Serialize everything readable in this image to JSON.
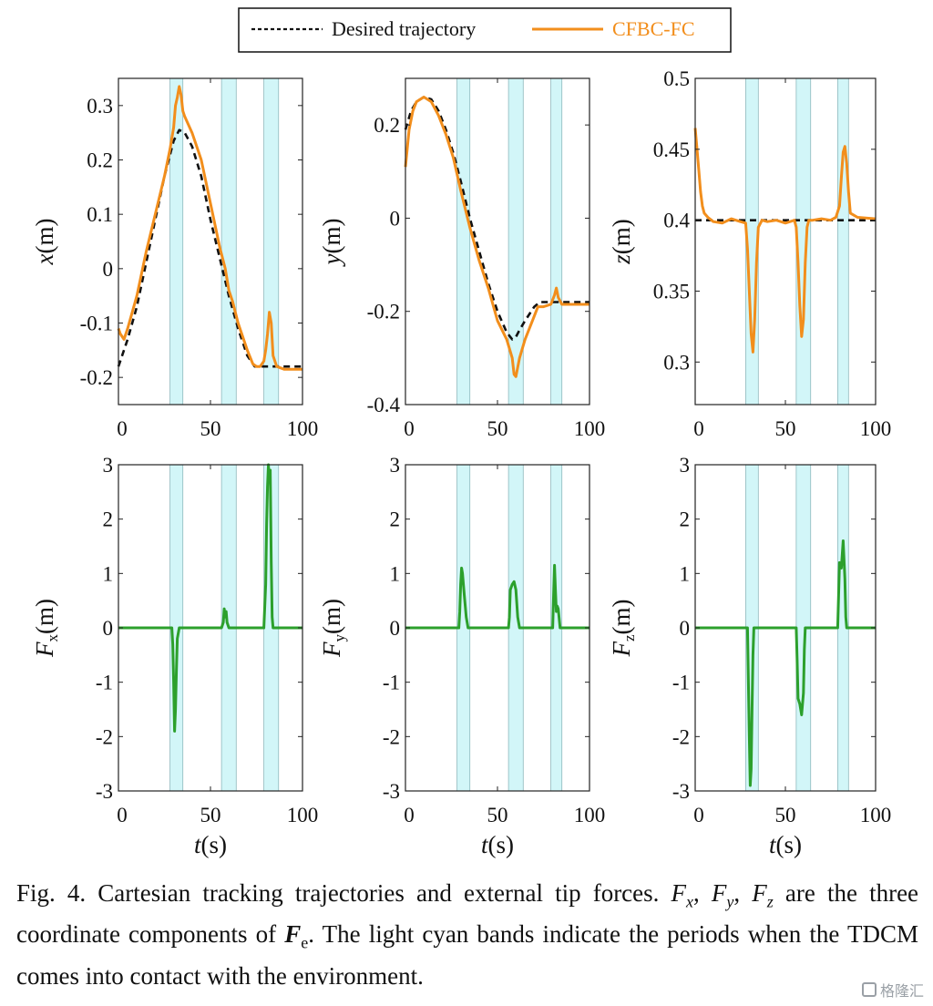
{
  "legend": {
    "desired_label": "Desired trajectory",
    "actual_label": "CFBC-FC",
    "desired_color": "#111111",
    "actual_color": "#f28e1c"
  },
  "force_color": "#2ca02c",
  "band_color": "#d2f6f8",
  "caption": {
    "fig_label": "Fig. 4.",
    "text_1": " Cartesian tracking trajectories and external tip forces. ",
    "sym_fx": "F",
    "sym_fx_sub": "x",
    "sym_fy": "F",
    "sym_fy_sub": "y",
    "sym_fz": "F",
    "sym_fz_sub": "z",
    "text_2": " are the three coordinate components of ",
    "sym_fe": "F",
    "sym_fe_sub": "e",
    "text_3": ". The light cyan bands indicate the periods when the TDCM comes into contact with the environment."
  },
  "watermark": "格隆汇",
  "chart_data": [
    {
      "type": "line",
      "ylabel": "x(m)",
      "xlabel": "",
      "xlim": [
        0,
        100
      ],
      "ylim": [
        -0.25,
        0.35
      ],
      "xticks": [
        0,
        50,
        100
      ],
      "yticks": [
        -0.2,
        -0.1,
        0,
        0.1,
        0.2,
        0.3
      ],
      "yticklabels": [
        "-0.2",
        "-0.1",
        "0",
        "0.1",
        "0.2",
        "0.3"
      ],
      "bands": [
        [
          28,
          35
        ],
        [
          56,
          64
        ],
        [
          79,
          87
        ]
      ],
      "series": [
        {
          "name": "Desired trajectory",
          "style": "dashed",
          "x": [
            0,
            5,
            10,
            15,
            20,
            25,
            30,
            33,
            36,
            40,
            45,
            50,
            55,
            60,
            65,
            70,
            74,
            76,
            80,
            90,
            100
          ],
          "y": [
            -0.18,
            -0.13,
            -0.07,
            0.01,
            0.09,
            0.17,
            0.235,
            0.255,
            0.25,
            0.225,
            0.17,
            0.09,
            0.02,
            -0.05,
            -0.11,
            -0.16,
            -0.18,
            -0.18,
            -0.18,
            -0.18,
            -0.18
          ]
        },
        {
          "name": "CFBC-FC",
          "style": "solid",
          "x": [
            0,
            1,
            3,
            5,
            10,
            15,
            20,
            25,
            28,
            30,
            31,
            32,
            33,
            34,
            35,
            36,
            40,
            45,
            50,
            55,
            58,
            60,
            62,
            65,
            70,
            73,
            75,
            77,
            79,
            80,
            81,
            82,
            83,
            84,
            86,
            90,
            100
          ],
          "y": [
            -0.11,
            -0.12,
            -0.13,
            -0.11,
            -0.05,
            0.03,
            0.1,
            0.17,
            0.22,
            0.26,
            0.3,
            0.315,
            0.335,
            0.32,
            0.29,
            0.28,
            0.25,
            0.2,
            0.12,
            0.04,
            0.0,
            -0.04,
            -0.06,
            -0.1,
            -0.15,
            -0.175,
            -0.18,
            -0.18,
            -0.17,
            -0.15,
            -0.12,
            -0.08,
            -0.1,
            -0.16,
            -0.18,
            -0.185,
            -0.185
          ]
        }
      ]
    },
    {
      "type": "line",
      "ylabel": "y(m)",
      "xlabel": "",
      "xlim": [
        0,
        100
      ],
      "ylim": [
        -0.4,
        0.3
      ],
      "xticks": [
        0,
        50,
        100
      ],
      "yticks": [
        -0.4,
        -0.2,
        0,
        0.2
      ],
      "yticklabels": [
        "-0.4",
        "-0.2",
        "0",
        "0.2"
      ],
      "bands": [
        [
          28,
          35
        ],
        [
          56,
          64
        ],
        [
          79,
          85
        ]
      ],
      "series": [
        {
          "name": "Desired trajectory",
          "style": "dashed",
          "x": [
            0,
            3,
            6,
            10,
            14,
            18,
            22,
            26,
            30,
            35,
            40,
            45,
            50,
            55,
            58,
            60,
            62,
            65,
            70,
            73,
            75,
            80,
            90,
            100
          ],
          "y": [
            0.19,
            0.23,
            0.25,
            0.26,
            0.255,
            0.23,
            0.19,
            0.14,
            0.08,
            0.0,
            -0.07,
            -0.14,
            -0.2,
            -0.245,
            -0.26,
            -0.255,
            -0.24,
            -0.22,
            -0.19,
            -0.18,
            -0.18,
            -0.18,
            -0.18,
            -0.18
          ]
        },
        {
          "name": "CFBC-FC",
          "style": "solid",
          "x": [
            0,
            2,
            4,
            6,
            10,
            14,
            18,
            22,
            26,
            30,
            35,
            40,
            45,
            50,
            55,
            58,
            59,
            60,
            62,
            65,
            70,
            72,
            75,
            79,
            81,
            82,
            83,
            85,
            90,
            100
          ],
          "y": [
            0.11,
            0.19,
            0.23,
            0.25,
            0.26,
            0.25,
            0.22,
            0.18,
            0.13,
            0.06,
            -0.02,
            -0.09,
            -0.15,
            -0.22,
            -0.26,
            -0.3,
            -0.335,
            -0.34,
            -0.3,
            -0.26,
            -0.21,
            -0.19,
            -0.19,
            -0.185,
            -0.165,
            -0.15,
            -0.17,
            -0.185,
            -0.185,
            -0.185
          ]
        }
      ]
    },
    {
      "type": "line",
      "ylabel": "z(m)",
      "xlabel": "",
      "xlim": [
        0,
        100
      ],
      "ylim": [
        0.27,
        0.5
      ],
      "xticks": [
        0,
        50,
        100
      ],
      "yticks": [
        0.3,
        0.35,
        0.4,
        0.45,
        0.5
      ],
      "yticklabels": [
        "0.3",
        "0.35",
        "0.4",
        "0.45",
        "0.5"
      ],
      "bands": [
        [
          28,
          35
        ],
        [
          56,
          64
        ],
        [
          79,
          85
        ]
      ],
      "series": [
        {
          "name": "Desired trajectory",
          "style": "dashed",
          "x": [
            0,
            100
          ],
          "y": [
            0.4,
            0.4
          ]
        },
        {
          "name": "CFBC-FC",
          "style": "solid",
          "x": [
            0,
            1,
            2,
            3,
            4,
            5,
            7,
            10,
            15,
            20,
            25,
            28,
            29,
            30,
            31,
            32,
            33,
            34,
            35,
            37,
            40,
            45,
            50,
            55,
            56,
            57,
            58,
            59,
            60,
            61,
            62,
            63,
            65,
            70,
            75,
            78,
            80,
            81,
            82,
            83,
            84,
            85,
            86,
            90,
            100
          ],
          "y": [
            0.465,
            0.45,
            0.435,
            0.42,
            0.41,
            0.405,
            0.402,
            0.399,
            0.398,
            0.401,
            0.399,
            0.398,
            0.38,
            0.35,
            0.32,
            0.307,
            0.33,
            0.37,
            0.395,
            0.4,
            0.399,
            0.4,
            0.398,
            0.4,
            0.395,
            0.37,
            0.34,
            0.318,
            0.33,
            0.37,
            0.395,
            0.4,
            0.4,
            0.401,
            0.4,
            0.402,
            0.41,
            0.43,
            0.448,
            0.452,
            0.44,
            0.42,
            0.405,
            0.402,
            0.401
          ]
        }
      ]
    },
    {
      "type": "line",
      "ylabel": "Fx(m)",
      "xlabel": "t(s)",
      "xlim": [
        0,
        100
      ],
      "ylim": [
        -3,
        3
      ],
      "xticks": [
        0,
        50,
        100
      ],
      "yticks": [
        -3,
        -2,
        -1,
        0,
        1,
        2,
        3
      ],
      "yticklabels": [
        "-3",
        "-2",
        "-1",
        "0",
        "1",
        "2",
        "3"
      ],
      "bands": [
        [
          28,
          35
        ],
        [
          56,
          64
        ],
        [
          79,
          87
        ]
      ],
      "series": [
        {
          "name": "",
          "style": "solid",
          "x": [
            0,
            29,
            29.5,
            30,
            30.5,
            31,
            31.5,
            32,
            33,
            34,
            56,
            57,
            57.5,
            58,
            58.5,
            59,
            60,
            61,
            79,
            80,
            80.5,
            81,
            81.5,
            82,
            82.5,
            83,
            83.5,
            84,
            100
          ],
          "y": [
            0,
            0,
            -0.3,
            -1.0,
            -1.9,
            -1.5,
            -0.8,
            -0.2,
            0,
            0,
            0,
            0.1,
            0.35,
            0.2,
            0.3,
            0.1,
            0,
            0,
            0,
            0.8,
            1.9,
            2.6,
            3.0,
            2.7,
            2.9,
            1.2,
            0.2,
            0,
            0
          ]
        }
      ]
    },
    {
      "type": "line",
      "ylabel": "Fy(m)",
      "xlabel": "t(s)",
      "xlim": [
        0,
        100
      ],
      "ylim": [
        -3,
        3
      ],
      "xticks": [
        0,
        50,
        100
      ],
      "yticks": [
        -3,
        -2,
        -1,
        0,
        1,
        2,
        3
      ],
      "yticklabels": [
        "-3",
        "-2",
        "-1",
        "0",
        "1",
        "2",
        "3"
      ],
      "bands": [
        [
          28,
          35
        ],
        [
          56,
          64
        ],
        [
          79,
          85
        ]
      ],
      "series": [
        {
          "name": "",
          "style": "solid",
          "x": [
            0,
            29,
            29.5,
            30,
            30.5,
            31,
            32,
            33,
            34,
            56,
            56.5,
            57,
            58,
            59,
            60,
            61,
            62,
            80,
            80.5,
            81,
            81.5,
            82,
            82.5,
            83,
            84,
            100
          ],
          "y": [
            0,
            0,
            0.3,
            0.8,
            1.1,
            1.0,
            0.6,
            0.2,
            0,
            0,
            0.2,
            0.7,
            0.8,
            0.85,
            0.7,
            0.2,
            0,
            0,
            0.6,
            1.15,
            0.7,
            0.3,
            0.4,
            0.35,
            0,
            0
          ]
        }
      ]
    },
    {
      "type": "line",
      "ylabel": "Fz(m)",
      "xlabel": "t(s)",
      "xlim": [
        0,
        100
      ],
      "ylim": [
        -3,
        3
      ],
      "xticks": [
        0,
        50,
        100
      ],
      "yticks": [
        -3,
        -2,
        -1,
        0,
        1,
        2,
        3
      ],
      "yticklabels": [
        "-3",
        "-2",
        "-1",
        "0",
        "1",
        "2",
        "3"
      ],
      "bands": [
        [
          28,
          35
        ],
        [
          56,
          64
        ],
        [
          79,
          85
        ]
      ],
      "series": [
        {
          "name": "",
          "style": "solid",
          "x": [
            0,
            29,
            29.5,
            30,
            30.5,
            31,
            31.5,
            32,
            32.5,
            33,
            56,
            56.5,
            57,
            58,
            59,
            60,
            60.5,
            61,
            79,
            79.5,
            80,
            81,
            82,
            83,
            83.5,
            84,
            100
          ],
          "y": [
            0,
            0,
            -1.0,
            -2.0,
            -2.9,
            -2.6,
            -1.5,
            -0.5,
            0,
            0,
            0,
            -0.6,
            -1.3,
            -1.4,
            -1.6,
            -1.2,
            -0.4,
            0,
            0,
            0.6,
            1.2,
            1.1,
            1.6,
            0.9,
            0.2,
            0,
            0
          ]
        }
      ]
    }
  ]
}
